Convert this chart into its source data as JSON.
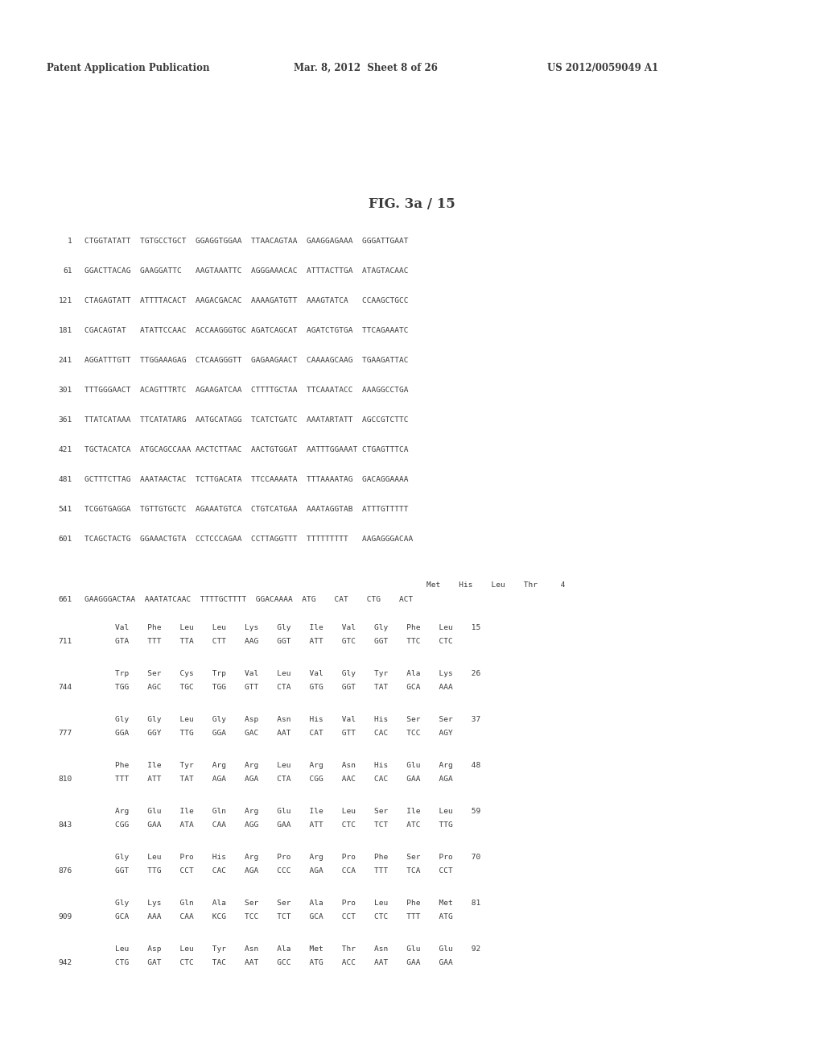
{
  "header_left": "Patent Application Publication",
  "header_mid": "Mar. 8, 2012  Sheet 8 of 26",
  "header_right": "US 2012/0059049 A1",
  "figure_title": "FIG. 3a / 15",
  "background_color": "#ffffff",
  "text_color": "#3a3a3a",
  "seq_lines": [
    {
      "num": "1",
      "seq": "CTGGTATATT  TGTGCCTGCT  GGAGGTGGAA  TTAACAGTAA  GAAGGAGAAA  GGGATTGAAT"
    },
    {
      "num": "61",
      "seq": "GGACTTACAG  GAAGGATTC   AAGTAAATTC  AGGGAAACAC  ATTTACTTGA  ATAGTACAAC"
    },
    {
      "num": "121",
      "seq": "CTAGAGTATT  ATTTTACACT  AAGACGACAC  AAAAGATGTT  AAAGTATCA   CCAAGCTGCC"
    },
    {
      "num": "181",
      "seq": "CGACAGTAT   ATATTCCAAC  ACCAAGGGTGC AGATCAGCAT  AGATCTGTGA  TTCAGAAATC"
    },
    {
      "num": "241",
      "seq": "AGGATTTGTT  TTGGAAAGAG  CTCAAGGGTT  GAGAAGAACT  CAAAAGCAAG  TGAAGATTAC"
    },
    {
      "num": "301",
      "seq": "TTTGGGAACT  ACAGTTTRTC  AGAAGATCAA  CTTTTGCTAA  TTCAAATACC  AAAGGCCTGA"
    },
    {
      "num": "361",
      "seq": "TTATCATAAA  TTCATATARG  AATGCATAGG  TCATCTGATC  AAATARTATT  AGCCGTCTTC"
    },
    {
      "num": "421",
      "seq": "TGCTACATCA  ATGCAGCCAAA AACTCTTAAC  AACTGTGGAT  AATTTGGAAAT CTGAGTTTCA"
    },
    {
      "num": "481",
      "seq": "GCTTTCTTAG  AAATAACTAC  TCTTGACATA  TTCCAAAATA  TTTAAAATAG  GACAGGAAAA"
    },
    {
      "num": "541",
      "seq": "TCGGTGAGGA  TGTTGTGCTC  AGAAATGTCA  CTGTCATGAA  AAATAGGTAB  ATTTGTTTTT"
    },
    {
      "num": "601",
      "seq": "TCAGCTACTG  GGAAACTGTA  CCTCCCAGAA  CCTTAGGTTT  TTTTTTTTT   AAGAGGGACAA"
    }
  ],
  "line661_note": "Met    His    Leu    Thr     4",
  "line661_num": "661",
  "line661_seq": "GAAGGGACTAA  AAATATCAAC  TTTTGCTTTT  GGACAAAA  ATG    CAT    CTG    ACT",
  "prot_lines": [
    {
      "aa": "Val    Phe    Leu    Leu    Lys    Gly    Ile    Val    Gly    Phe    Leu    15",
      "num": "711",
      "codons": "GTA    TTT    TTA    CTT    AAG    GGT    ATT    GTC    GGT    TTC    CTC"
    },
    {
      "aa": "Trp    Ser    Cys    Trp    Val    Leu    Val    Gly    Tyr    Ala    Lys    26",
      "num": "744",
      "codons": "TGG    AGC    TGC    TGG    GTT    CTA    GTG    GGT    TAT    GCA    AAA"
    },
    {
      "aa": "Gly    Gly    Leu    Gly    Asp    Asn    His    Val    His    Ser    Ser    37",
      "num": "777",
      "codons": "GGA    GGY    TTG    GGA    GAC    AAT    CAT    GTT    CAC    TCC    AGY"
    },
    {
      "aa": "Phe    Ile    Tyr    Arg    Arg    Leu    Arg    Asn    His    Glu    Arg    48",
      "num": "810",
      "codons": "TTT    ATT    TAT    AGA    AGA    CTA    CGG    AAC    CAC    GAA    AGA"
    },
    {
      "aa": "Arg    Glu    Ile    Gln    Arg    Glu    Ile    Leu    Ser    Ile    Leu    59",
      "num": "843",
      "codons": "CGG    GAA    ATA    CAA    AGG    GAA    ATT    CTC    TCT    ATC    TTG"
    },
    {
      "aa": "Gly    Leu    Pro    His    Arg    Pro    Arg    Pro    Phe    Ser    Pro    70",
      "num": "876",
      "codons": "GGT    TTG    CCT    CAC    AGA    CCC    AGA    CCA    TTT    TCA    CCT"
    },
    {
      "aa": "Gly    Lys    Gln    Ala    Ser    Ser    Ala    Pro    Leu    Phe    Met    81",
      "num": "909",
      "codons": "GCA    AAA    CAA    KCG    TCC    TCT    GCA    CCT    CTC    TTT    ATG"
    },
    {
      "aa": "Leu    Asp    Leu    Tyr    Asn    Ala    Met    Thr    Asn    Glu    Glu    92",
      "num": "942",
      "codons": "CTG    GAT    CTC    TAC    AAT    GCC    ATG    ACC    AAT    GAA    GAA"
    }
  ]
}
